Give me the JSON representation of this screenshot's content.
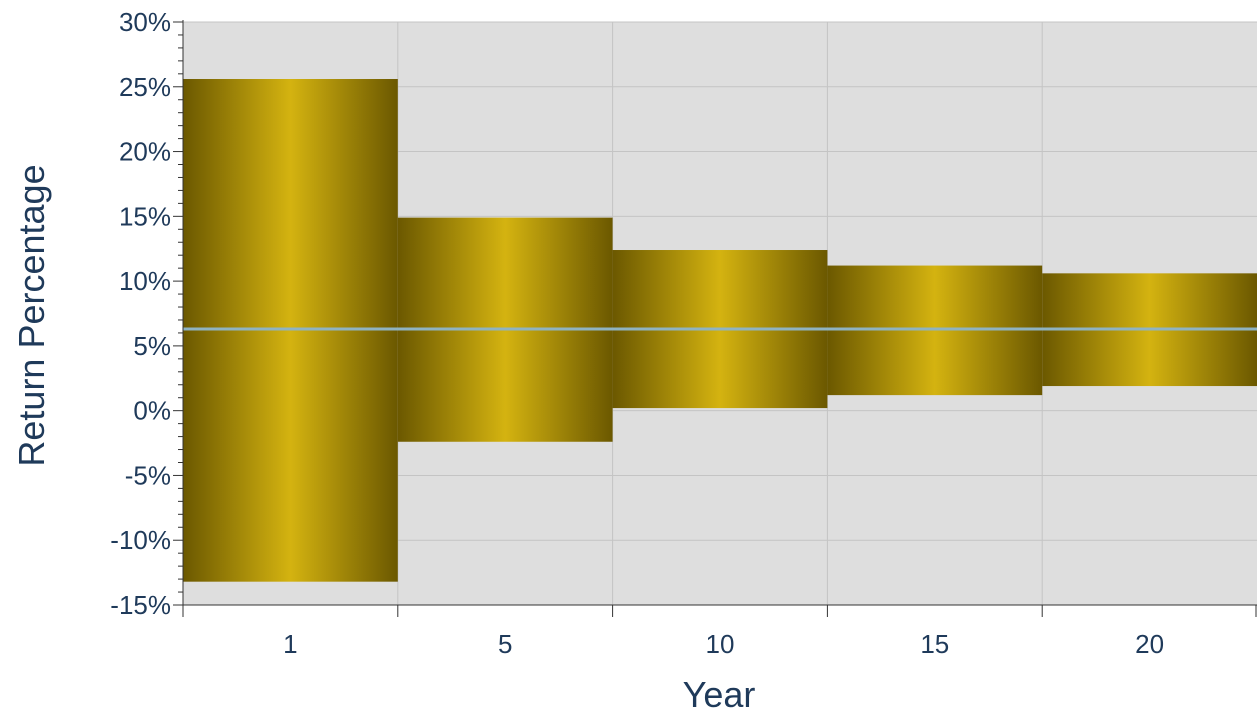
{
  "chart_data": {
    "type": "bar",
    "subtype": "floating range bars",
    "categories": [
      "1",
      "5",
      "10",
      "15",
      "20"
    ],
    "series": [
      {
        "values_low": [
          -13.2,
          -2.4,
          0.2,
          1.2,
          1.9
        ],
        "values_high": [
          25.6,
          14.9,
          12.4,
          11.2,
          10.6
        ]
      }
    ],
    "reference_line": {
      "value": 6.3,
      "color": "#8fb3c2"
    },
    "xlabel": "Year",
    "ylabel": "Return Percentage",
    "ylim": [
      -15,
      30
    ],
    "y_ticks": [
      -15,
      -10,
      -5,
      0,
      5,
      10,
      15,
      20,
      25,
      30
    ],
    "y_tick_labels": [
      "-15%",
      "-10%",
      "-5%",
      "0%",
      "5%",
      "10%",
      "15%",
      "20%",
      "25%",
      "30%"
    ],
    "grid": true,
    "colors": {
      "plot_background": "#dedede",
      "grid": "#c4c4c4",
      "bar_edge": "#6b5800",
      "bar_center": "#d4b310",
      "text": "#1f3a5a"
    }
  }
}
